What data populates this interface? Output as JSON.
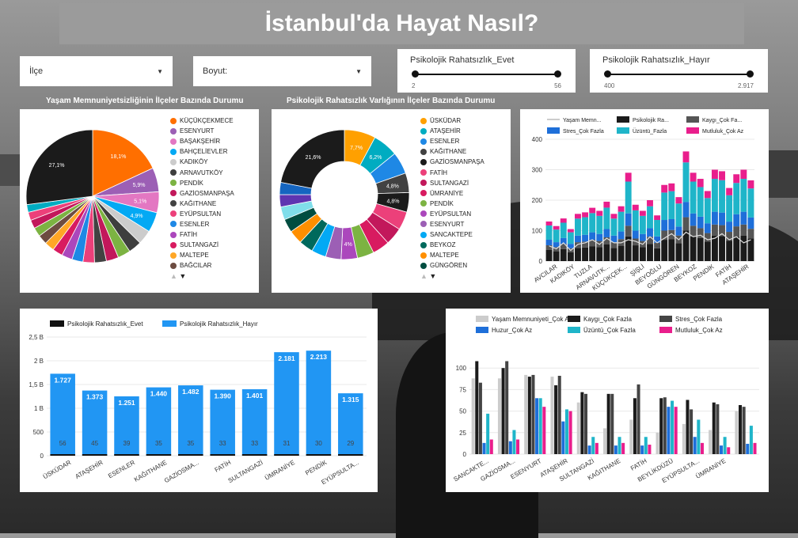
{
  "title": "İstanbul'da Hayat Nasıl?",
  "filters": {
    "ilce": "İlçe",
    "boyut": "Boyut:"
  },
  "sliders": [
    {
      "label": "Psikolojik Rahatsızlık_Evet",
      "min": "2",
      "max": "56"
    },
    {
      "label": "Psikolojik Rahatsızlık_Hayır",
      "min": "400",
      "max": "2.917"
    }
  ],
  "colors": {
    "c1": "#ff6f00",
    "c2": "#9c5fb5",
    "c3": "#e377c2",
    "c4": "#03a9f4",
    "c5": "#cccccc",
    "c6": "#3e3e3e",
    "c7": "#7cb342",
    "c8": "#c2185b",
    "c9": "#424242",
    "c10": "#ec407a",
    "c11": "#1e88e5",
    "c12": "#ab47bc",
    "c13": "#d81b60",
    "c14": "#ffa726",
    "c15": "#6d4c41"
  },
  "chart_data": [
    {
      "type": "pie",
      "title": "Yaşam Memnuniyetsizliğinin İlçeler Bazında Durumu",
      "categories": [
        "KÜÇÜKÇEKMECE",
        "ESENYURT",
        "BAŞAKŞEHİR",
        "BAHÇELİEVLER",
        "KADIKÖY",
        "ARNAVUTKÖY",
        "PENDİK",
        "GAZİOSMANPAŞA",
        "KAĞITHANE",
        "EYÜPSULTAN",
        "ESENLER",
        "FATİH",
        "SULTANGAZİ",
        "MALTEPE",
        "BAĞCILAR"
      ],
      "colors": [
        "#ff6f00",
        "#9c5fb5",
        "#e377c2",
        "#03a9f4",
        "#cccccc",
        "#3e3e3e",
        "#7cb342",
        "#c2185b",
        "#424242",
        "#ec407a",
        "#1e88e5",
        "#ab47bc",
        "#d81b60",
        "#ffa726",
        "#6d4c41"
      ],
      "slices": [
        {
          "label": "",
          "value": 18.1,
          "color": "#ff6f00",
          "text": "18,1%"
        },
        {
          "label": "",
          "value": 5.9,
          "color": "#9c5fb5",
          "text": "5,9%"
        },
        {
          "label": "",
          "value": 5.1,
          "color": "#e377c2",
          "text": "5,1%"
        },
        {
          "label": "",
          "value": 4.9,
          "color": "#03a9f4",
          "text": "4,9%"
        },
        {
          "label": "",
          "value": 3.5,
          "color": "#cccccc",
          "text": ""
        },
        {
          "label": "",
          "value": 3.2,
          "color": "#3e3e3e",
          "text": ""
        },
        {
          "label": "",
          "value": 3.1,
          "color": "#7cb342",
          "text": ""
        },
        {
          "label": "",
          "value": 3.0,
          "color": "#c2185b",
          "text": ""
        },
        {
          "label": "",
          "value": 2.9,
          "color": "#424242",
          "text": ""
        },
        {
          "label": "",
          "value": 2.8,
          "color": "#ec407a",
          "text": ""
        },
        {
          "label": "",
          "value": 2.7,
          "color": "#1e88e5",
          "text": ""
        },
        {
          "label": "",
          "value": 2.6,
          "color": "#ab47bc",
          "text": ""
        },
        {
          "label": "",
          "value": 2.5,
          "color": "#d81b60",
          "text": ""
        },
        {
          "label": "",
          "value": 2.4,
          "color": "#ffa726",
          "text": ""
        },
        {
          "label": "",
          "value": 2.3,
          "color": "#6d4c41",
          "text": ""
        },
        {
          "label": "",
          "value": 2.2,
          "color": "#7cb342",
          "text": ""
        },
        {
          "label": "",
          "value": 2.1,
          "color": "#c2185b",
          "text": ""
        },
        {
          "label": "",
          "value": 2.0,
          "color": "#ec407a",
          "text": ""
        },
        {
          "label": "",
          "value": 1.9,
          "color": "#00acc1",
          "text": ""
        },
        {
          "label": "",
          "value": 27.1,
          "color": "#1b1b1b",
          "text": "27,1%"
        }
      ]
    },
    {
      "type": "pie",
      "donut": true,
      "title": "Psikolojik Rahatsızlık Varlığının İlçeler Bazında Durumu",
      "categories": [
        "ÜSKÜDAR",
        "ATAŞEHİR",
        "ESENLER",
        "KAĞITHANE",
        "GAZİOSMANPAŞA",
        "FATİH",
        "SULTANGAZİ",
        "ÜMRANİYE",
        "PENDİK",
        "EYÜPSULTAN",
        "ESENYURT",
        "SANCAKTEPE",
        "BEYKOZ",
        "MALTEPE",
        "GÜNGÖREN"
      ],
      "colors": [
        "#ffa000",
        "#00acc1",
        "#1e88e5",
        "#424242",
        "#1b1b1b",
        "#ec407a",
        "#c2185b",
        "#d81b60",
        "#7cb342",
        "#ab47bc",
        "#9c5fb5",
        "#03a9f4",
        "#00695c",
        "#ff8f00",
        "#004d40"
      ],
      "slices": [
        {
          "value": 7.7,
          "color": "#ffa000",
          "text": "7,7%"
        },
        {
          "value": 6.2,
          "color": "#00acc1",
          "text": "6,2%"
        },
        {
          "value": 5.4,
          "color": "#1e88e5",
          "text": ""
        },
        {
          "value": 4.8,
          "color": "#424242",
          "text": "4,8%"
        },
        {
          "value": 4.8,
          "color": "#1b1b1b",
          "text": "4,8%"
        },
        {
          "value": 4.5,
          "color": "#ec407a",
          "text": ""
        },
        {
          "value": 4.3,
          "color": "#c2185b",
          "text": ""
        },
        {
          "value": 4.2,
          "color": "#d81b60",
          "text": ""
        },
        {
          "value": 4.1,
          "color": "#7cb342",
          "text": ""
        },
        {
          "value": 4.0,
          "color": "#ab47bc",
          "text": "4%"
        },
        {
          "value": 3.8,
          "color": "#9c5fb5",
          "text": ""
        },
        {
          "value": 3.6,
          "color": "#03a9f4",
          "text": ""
        },
        {
          "value": 3.5,
          "color": "#00695c",
          "text": ""
        },
        {
          "value": 3.4,
          "color": "#ff8f00",
          "text": ""
        },
        {
          "value": 3.3,
          "color": "#004d40",
          "text": ""
        },
        {
          "value": 3.2,
          "color": "#80deea",
          "text": ""
        },
        {
          "value": 3.0,
          "color": "#5e35b1",
          "text": ""
        },
        {
          "value": 3.0,
          "color": "#1565c0",
          "text": ""
        },
        {
          "value": 21.6,
          "color": "#1b1b1b",
          "text": "21,6%"
        }
      ]
    },
    {
      "type": "bar",
      "stacked": true,
      "series": [
        {
          "name": "Yaşam Memn...",
          "color": "#dddddd",
          "kind": "line"
        },
        {
          "name": "Psikolojik Ra...",
          "color": "#1b1b1b"
        },
        {
          "name": "Kaygı_Çok Fa...",
          "color": "#555555"
        },
        {
          "name": "Stres_Çok Fazla",
          "color": "#1e6fd9"
        },
        {
          "name": "Üzüntü_Fazla",
          "color": "#1fb5c9"
        },
        {
          "name": "Mutluluk_Çok Az",
          "color": "#e91e8c"
        }
      ],
      "x_labels": [
        "AVCILAR",
        "KADIKÖY",
        "TUZLA",
        "ARNAVUTK...",
        "KÜÇÜKÇEK...",
        "ŞİŞLİ",
        "BEYOĞLU",
        "GÜNGÖREN",
        "BEYKOZ",
        "PENDİK",
        "FATİH",
        "ATAŞEHİR"
      ],
      "ylim": [
        0,
        400
      ],
      "yticks": [
        0,
        100,
        200,
        300,
        400
      ],
      "totals": [
        130,
        115,
        140,
        105,
        155,
        160,
        175,
        165,
        195,
        155,
        180,
        290,
        185,
        165,
        200,
        150,
        250,
        255,
        210,
        360,
        290,
        270,
        230,
        300,
        295,
        240,
        285,
        300,
        265
      ],
      "line": [
        50,
        40,
        60,
        35,
        55,
        60,
        70,
        55,
        75,
        60,
        60,
        70,
        65,
        55,
        80,
        60,
        75,
        90,
        70,
        95,
        80,
        85,
        70,
        75,
        90,
        70,
        80,
        60,
        70
      ]
    },
    {
      "type": "bar",
      "series": [
        {
          "name": "Psikolojik Rahatsızlık_Evet",
          "color": "#111111",
          "values": [
            56,
            45,
            39,
            35,
            35,
            33,
            33,
            31,
            30,
            29
          ]
        },
        {
          "name": "Psikolojik Rahatsızlık_Hayır",
          "color": "#2196f3",
          "values": [
            1727,
            1373,
            1251,
            1440,
            1482,
            1390,
            1401,
            2181,
            2213,
            1315
          ]
        }
      ],
      "categories": [
        "ÜSKÜDAR",
        "ATAŞEHİR",
        "ESENLER",
        "KAĞITHANE",
        "GAZİOSMA...",
        "FATİH",
        "SULTANGAZİ",
        "ÜMRANİYE",
        "PENDİK",
        "EYÜPSULTA..."
      ],
      "value_labels": [
        "1.727",
        "1.373",
        "1.251",
        "1.440",
        "1.482",
        "1.390",
        "1.401",
        "2.181",
        "2.213",
        "1.315"
      ],
      "ylim": [
        0,
        2500
      ],
      "yticks": [
        "0",
        "500",
        "1 B",
        "1,5 B",
        "2 B",
        "2,5 B"
      ]
    },
    {
      "type": "bar",
      "series": [
        {
          "name": "Yaşam Memnuniyeti_Çok Az",
          "color": "#cccccc",
          "values": [
            88,
            88,
            92,
            90,
            60,
            30,
            40,
            25,
            35,
            28,
            50
          ]
        },
        {
          "name": "Kaygı_Çok Fazla",
          "color": "#1b1b1b",
          "values": [
            108,
            100,
            90,
            80,
            72,
            70,
            65,
            65,
            63,
            60,
            57
          ]
        },
        {
          "name": "Stres_Çok Fazla",
          "color": "#444444",
          "values": [
            83,
            108,
            92,
            91,
            70,
            70,
            81,
            66,
            52,
            58,
            55
          ]
        },
        {
          "name": "Huzur_Çok Az",
          "color": "#1e6fd9",
          "values": [
            13,
            15,
            65,
            38,
            10,
            10,
            10,
            55,
            20,
            10,
            12
          ]
        },
        {
          "name": "Üzüntü_Çok Fazla",
          "color": "#1fb5c9",
          "values": [
            47,
            28,
            65,
            52,
            20,
            20,
            20,
            62,
            40,
            20,
            33
          ]
        },
        {
          "name": "Mutluluk_Çok Az",
          "color": "#e91e8c",
          "values": [
            17,
            17,
            55,
            50,
            13,
            13,
            11,
            55,
            13,
            8,
            13
          ]
        }
      ],
      "categories": [
        "SANCAKTE...",
        "GAZİOSMA...",
        "ESENYURT",
        "ATAŞEHİR",
        "SULTANGAZİ",
        "KAĞITHANE",
        "FATİH",
        "BEYLİKDÜZÜ",
        "EYÜPSULTA...",
        "ÜMRANİYE",
        ""
      ],
      "ylim": [
        0,
        125
      ],
      "yticks": [
        0,
        25,
        50,
        75,
        100
      ]
    }
  ]
}
